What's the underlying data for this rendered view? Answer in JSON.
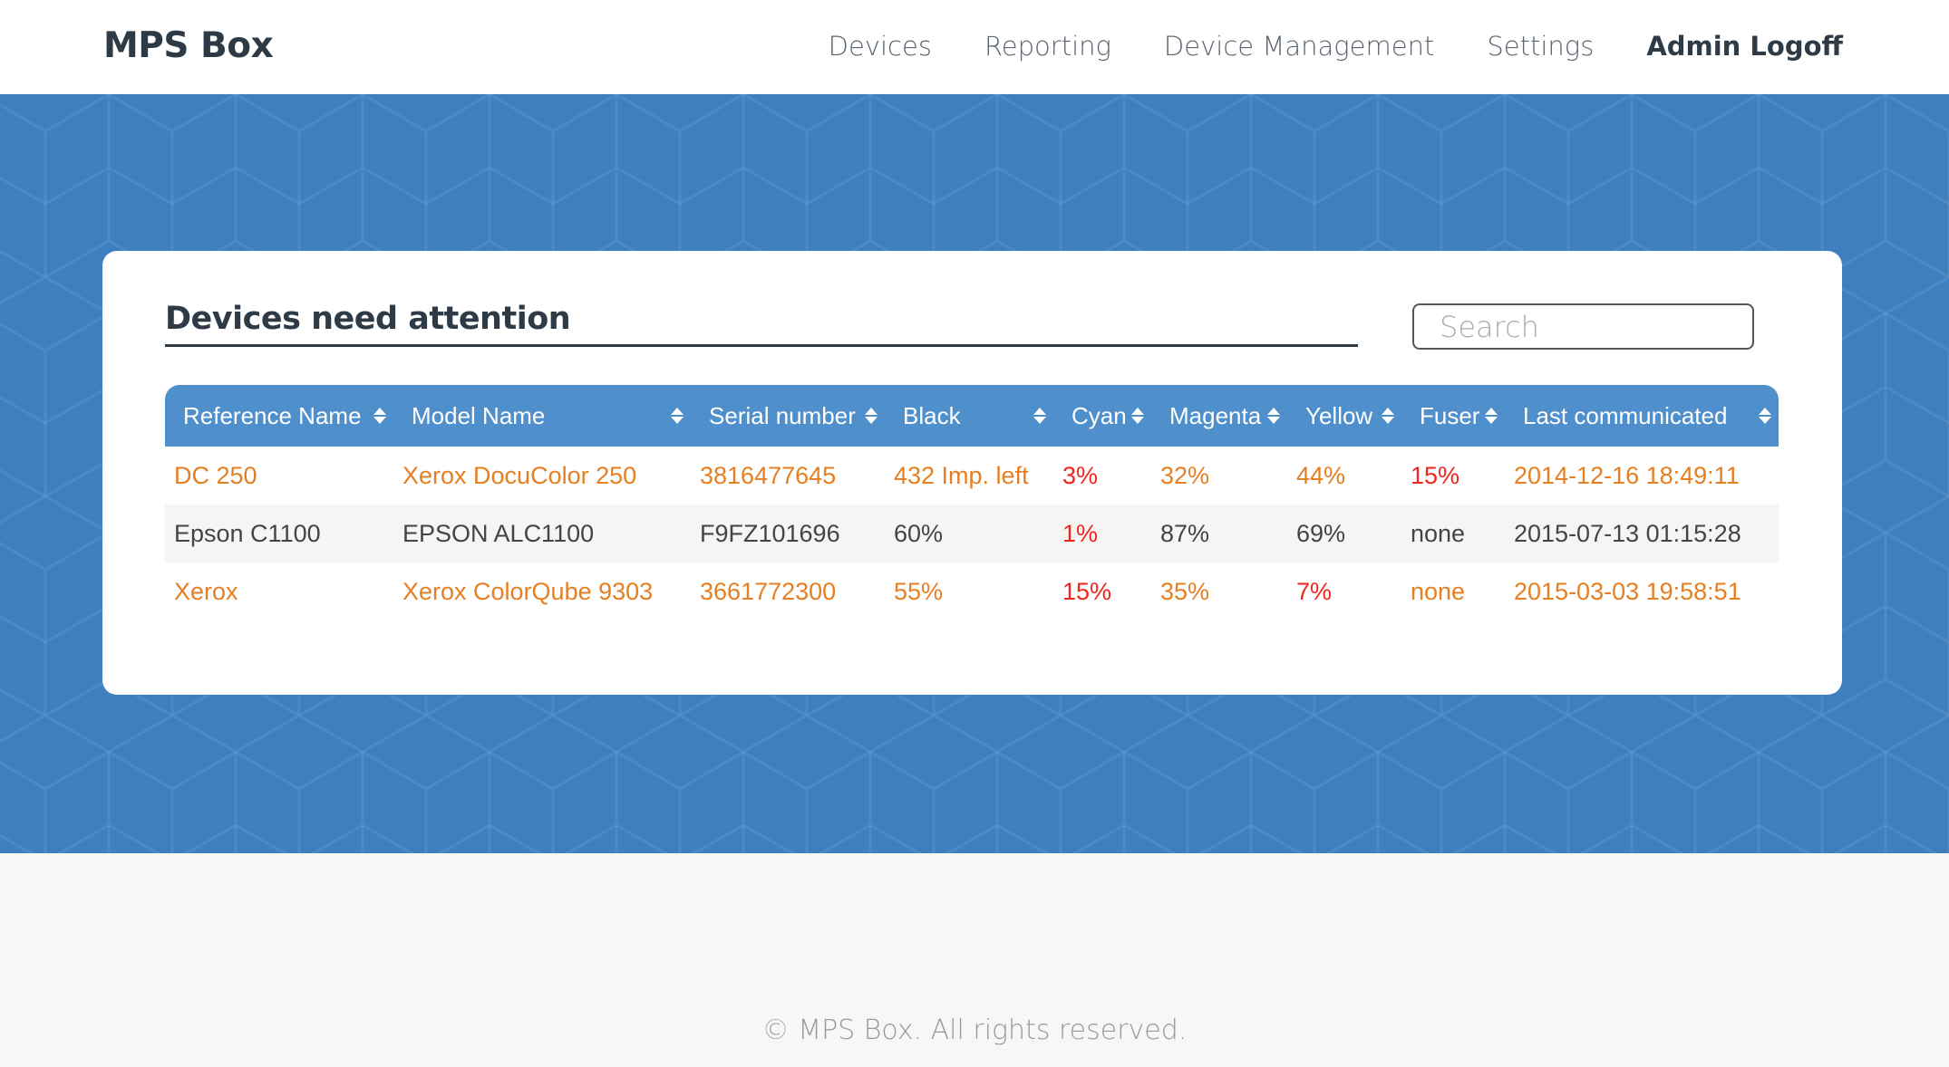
{
  "app": {
    "title": "MPS Box"
  },
  "nav": [
    {
      "label": "Devices"
    },
    {
      "label": "Reporting"
    },
    {
      "label": "Device Management"
    },
    {
      "label": "Settings"
    },
    {
      "label": "Admin Logoff"
    }
  ],
  "main": {
    "title": "Devices need attention",
    "search": {
      "placeholder": "Search",
      "value": ""
    },
    "columns": [
      "Reference Name",
      "Model Name",
      "Serial number",
      "Black",
      "Cyan",
      "Magenta",
      "Yellow",
      "Fuser",
      "Last communicated"
    ],
    "rows": [
      {
        "cells": [
          "DC 250",
          "Xerox DocuColor 250",
          "3816477645",
          "432 Imp. left",
          "3%",
          "32%",
          "44%",
          "15%",
          "2014-12-16 18:49:11"
        ],
        "status": [
          "warn",
          "warn",
          "warn",
          "warn",
          "critical",
          "warn",
          "warn",
          "critical",
          "warn"
        ]
      },
      {
        "cells": [
          "Epson C1100",
          "EPSON ALC1100",
          "F9FZ101696",
          "60%",
          "1%",
          "87%",
          "69%",
          "none",
          "2015-07-13 01:15:28"
        ],
        "status": [
          "normal",
          "normal",
          "normal",
          "normal",
          "critical",
          "normal",
          "normal",
          "normal",
          "normal"
        ]
      },
      {
        "cells": [
          "Xerox",
          "Xerox ColorQube 9303",
          "3661772300",
          "55%",
          "15%",
          "35%",
          "7%",
          "none",
          "2015-03-03 19:58:51"
        ],
        "status": [
          "warn",
          "warn",
          "warn",
          "warn",
          "critical",
          "warn",
          "critical",
          "warn",
          "warn"
        ]
      }
    ]
  },
  "colors": {
    "header": "#4f8fcb",
    "band": "#3e7fbf",
    "warn": "#e67e22",
    "critical": "#f0261c",
    "normal": "#444444"
  },
  "footer": {
    "text": "© MPS Box. All rights reserved."
  }
}
